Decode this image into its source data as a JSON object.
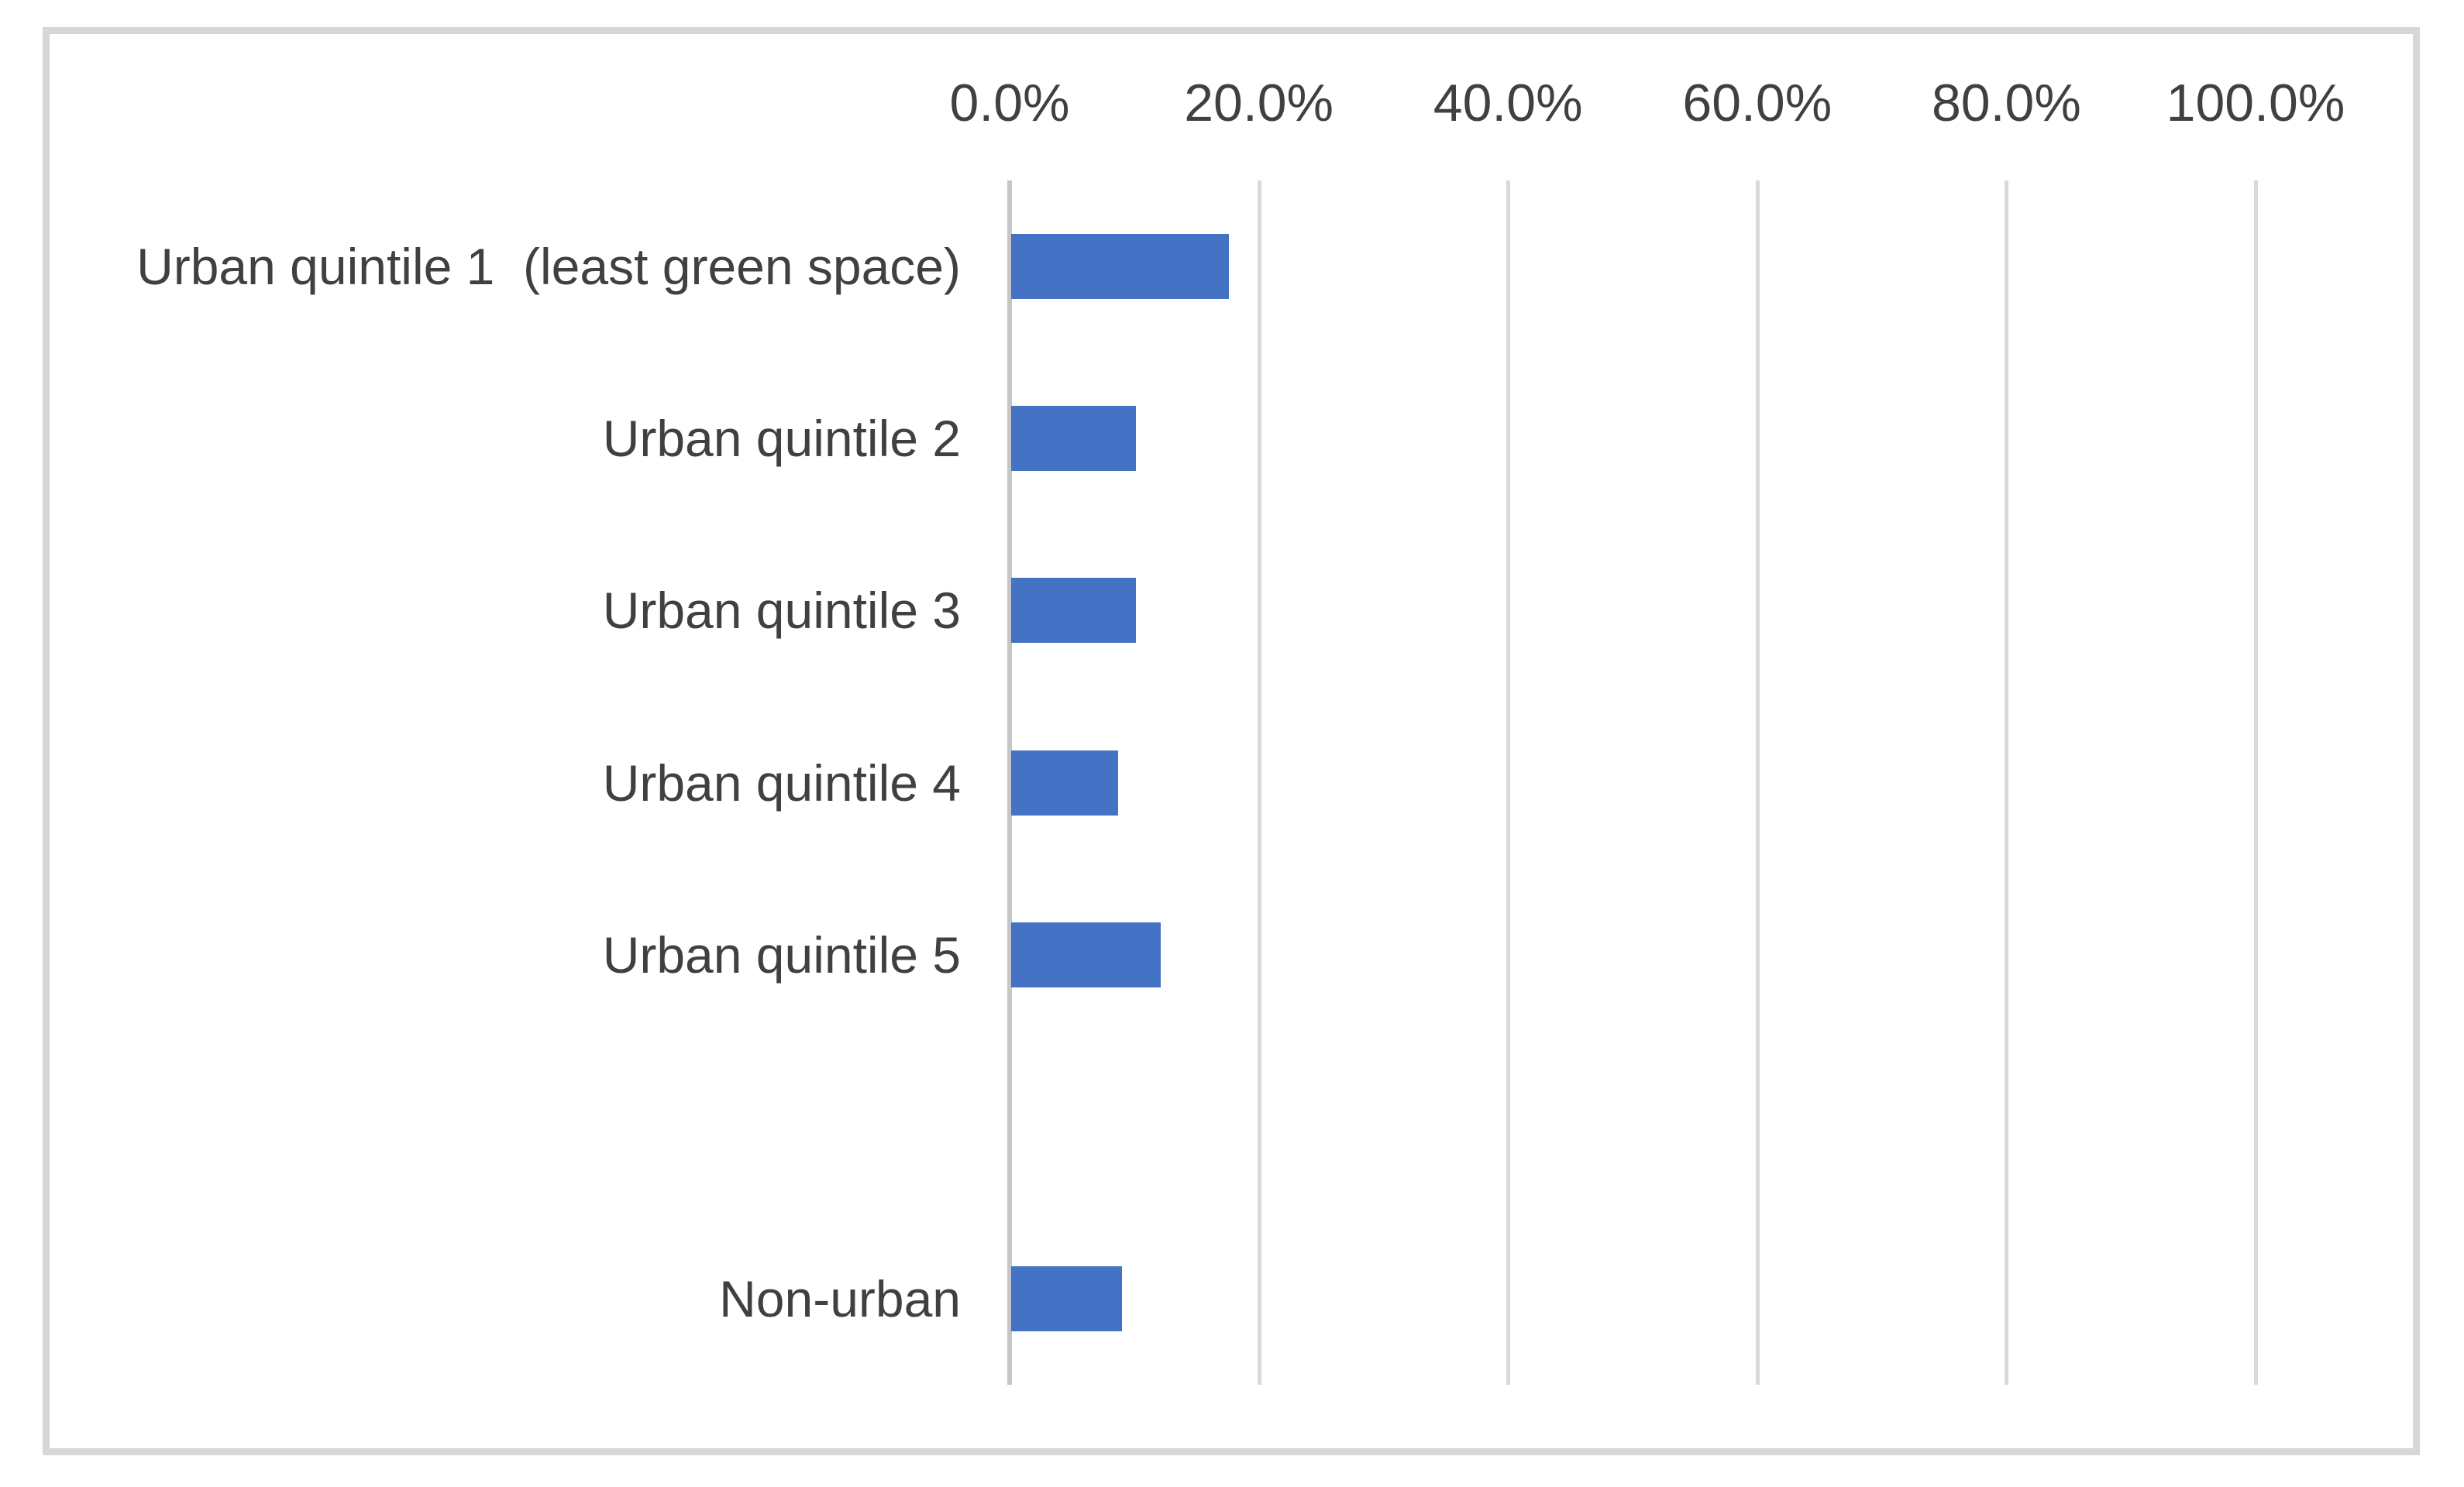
{
  "figure": {
    "background": "#ffffff",
    "border_color": "#d7d7d7"
  },
  "chart_data": {
    "type": "bar",
    "orientation": "horizontal",
    "title": "",
    "xlabel": "",
    "ylabel": "",
    "categories": [
      "Urban quintile 1  (least green space)",
      "Urban quintile 2",
      "Urban quintile 3",
      "Urban quintile 4",
      "Urban quintile 5",
      "",
      "Non-urban"
    ],
    "values": [
      17.5,
      10.0,
      10.0,
      8.6,
      12.0,
      null,
      8.9
    ],
    "value_unit": "%",
    "x_axis": {
      "position": "top",
      "min": 0,
      "max": 100,
      "ticks": [
        0,
        20,
        40,
        60,
        80,
        100
      ],
      "tick_labels": [
        "0.0%",
        "20.0%",
        "40.0%",
        "60.0%",
        "80.0%",
        "100.0%"
      ]
    },
    "grid": true,
    "legend": false,
    "colors": {
      "bar": "#4472C4",
      "gridline": "#d9d9d9",
      "axis_line": "#c6c6c6",
      "text": "#404040"
    }
  }
}
